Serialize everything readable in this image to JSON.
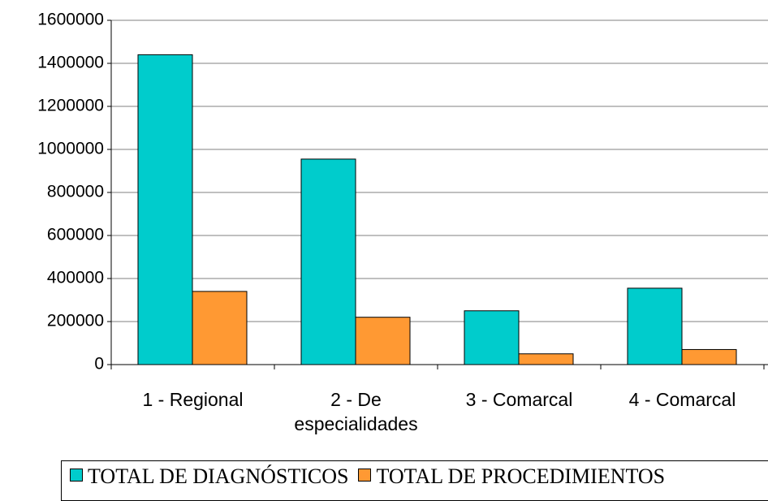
{
  "chart_data": {
    "type": "bar",
    "categories": [
      "1 - Regional",
      "2 - De especialidades",
      "3 - Comarcal",
      "4 - Comarcal"
    ],
    "series": [
      {
        "name": "TOTAL DE DIAGNÓSTICOS",
        "color": "#00cccc",
        "values": [
          1440000,
          955000,
          250000,
          355000
        ]
      },
      {
        "name": "TOTAL DE PROCEDIMIENTOS",
        "color": "#ff9933",
        "values": [
          340000,
          220000,
          50000,
          70000
        ]
      }
    ],
    "ylim": [
      0,
      1600000
    ],
    "yticks": [
      0,
      200000,
      400000,
      600000,
      800000,
      1000000,
      1200000,
      1400000,
      1600000
    ],
    "grid": true,
    "legend": "bottom"
  }
}
